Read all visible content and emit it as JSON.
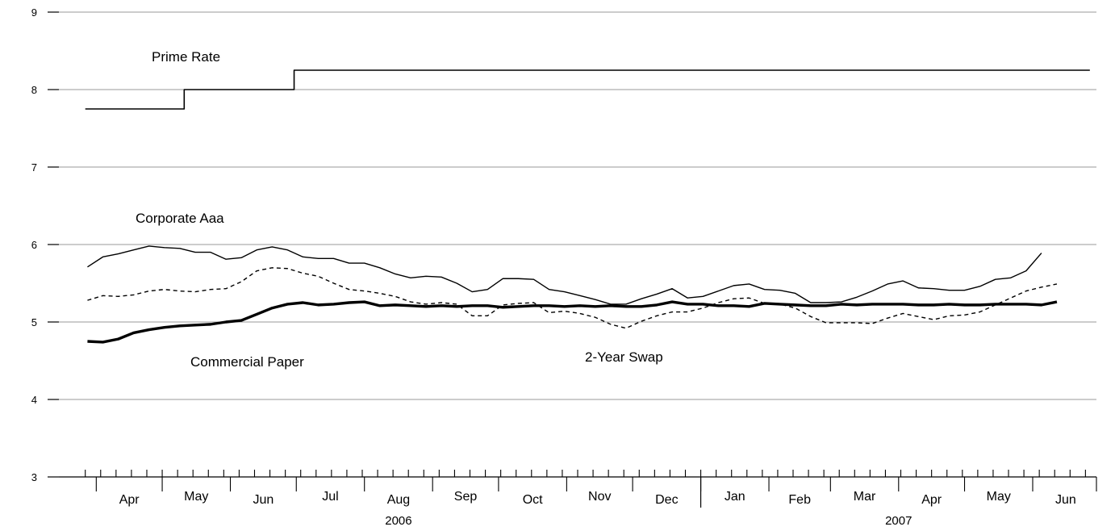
{
  "chart_data": {
    "type": "line",
    "title": "",
    "xlabel": "",
    "ylabel": "",
    "ylim": [
      3,
      9
    ],
    "yticks": [
      3,
      4,
      5,
      6,
      7,
      8,
      9
    ],
    "grid": "horizontal",
    "x_range": [
      "2006-03-15",
      "2007-06-30"
    ],
    "months": [
      {
        "label": "Apr",
        "start": "2006-04-01",
        "end": "2006-05-01"
      },
      {
        "label": "May",
        "start": "2006-05-01",
        "end": "2006-06-01"
      },
      {
        "label": "Jun",
        "start": "2006-06-01",
        "end": "2006-07-01"
      },
      {
        "label": "Jul",
        "start": "2006-07-01",
        "end": "2006-08-01"
      },
      {
        "label": "Aug",
        "start": "2006-08-01",
        "end": "2006-09-01"
      },
      {
        "label": "Sep",
        "start": "2006-09-01",
        "end": "2006-10-01"
      },
      {
        "label": "Oct",
        "start": "2006-10-01",
        "end": "2006-11-01"
      },
      {
        "label": "Nov",
        "start": "2006-11-01",
        "end": "2006-12-01"
      },
      {
        "label": "Dec",
        "start": "2006-12-01",
        "end": "2007-01-01"
      },
      {
        "label": "Jan",
        "start": "2007-01-01",
        "end": "2007-02-01"
      },
      {
        "label": "Feb",
        "start": "2007-02-01",
        "end": "2007-03-01"
      },
      {
        "label": "Mar",
        "start": "2007-03-01",
        "end": "2007-04-01"
      },
      {
        "label": "Apr",
        "start": "2007-04-01",
        "end": "2007-05-01"
      },
      {
        "label": "May",
        "start": "2007-05-01",
        "end": "2007-06-01"
      },
      {
        "label": "Jun",
        "start": "2007-06-01",
        "end": "2007-07-01"
      }
    ],
    "years": [
      {
        "label": "2006",
        "start": "2006-04-01",
        "end": "2007-01-01"
      },
      {
        "label": "2007",
        "start": "2007-01-01",
        "end": "2007-07-01"
      }
    ],
    "series": [
      {
        "name": "Prime Rate",
        "style": "step",
        "color": "#000000",
        "points": [
          [
            "2006-03-27",
            7.75
          ],
          [
            "2006-05-11",
            8.0
          ],
          [
            "2006-06-30",
            8.25
          ],
          [
            "2007-06-27",
            8.25
          ]
        ]
      },
      {
        "name": "Corporate Aaa",
        "style": "solid",
        "color": "#000000",
        "points": [
          [
            "2006-03-28",
            5.71
          ],
          [
            "2006-04-04",
            5.84
          ],
          [
            "2006-04-11",
            5.88
          ],
          [
            "2006-04-18",
            5.93
          ],
          [
            "2006-04-25",
            5.98
          ],
          [
            "2006-05-02",
            5.96
          ],
          [
            "2006-05-09",
            5.95
          ],
          [
            "2006-05-16",
            5.9
          ],
          [
            "2006-05-23",
            5.9
          ],
          [
            "2006-05-30",
            5.81
          ],
          [
            "2006-06-06",
            5.83
          ],
          [
            "2006-06-13",
            5.93
          ],
          [
            "2006-06-20",
            5.97
          ],
          [
            "2006-06-27",
            5.93
          ],
          [
            "2006-07-04",
            5.84
          ],
          [
            "2006-07-11",
            5.82
          ],
          [
            "2006-07-18",
            5.82
          ],
          [
            "2006-07-25",
            5.76
          ],
          [
            "2006-08-01",
            5.76
          ],
          [
            "2006-08-08",
            5.7
          ],
          [
            "2006-08-15",
            5.62
          ],
          [
            "2006-08-22",
            5.57
          ],
          [
            "2006-08-29",
            5.59
          ],
          [
            "2006-09-05",
            5.58
          ],
          [
            "2006-09-12",
            5.5
          ],
          [
            "2006-09-19",
            5.39
          ],
          [
            "2006-09-26",
            5.42
          ],
          [
            "2006-10-03",
            5.56
          ],
          [
            "2006-10-10",
            5.56
          ],
          [
            "2006-10-17",
            5.55
          ],
          [
            "2006-10-24",
            5.42
          ],
          [
            "2006-10-31",
            5.39
          ],
          [
            "2006-11-07",
            5.34
          ],
          [
            "2006-11-14",
            5.29
          ],
          [
            "2006-11-21",
            5.23
          ],
          [
            "2006-11-28",
            5.23
          ],
          [
            "2006-12-05",
            5.3
          ],
          [
            "2006-12-12",
            5.36
          ],
          [
            "2006-12-19",
            5.43
          ],
          [
            "2006-12-26",
            5.31
          ],
          [
            "2007-01-02",
            5.33
          ],
          [
            "2007-01-09",
            5.4
          ],
          [
            "2007-01-16",
            5.47
          ],
          [
            "2007-01-23",
            5.49
          ],
          [
            "2007-01-30",
            5.42
          ],
          [
            "2007-02-06",
            5.41
          ],
          [
            "2007-02-13",
            5.37
          ],
          [
            "2007-02-20",
            5.25
          ],
          [
            "2007-02-27",
            5.25
          ],
          [
            "2007-03-06",
            5.26
          ],
          [
            "2007-03-13",
            5.32
          ],
          [
            "2007-03-20",
            5.4
          ],
          [
            "2007-03-27",
            5.49
          ],
          [
            "2007-04-03",
            5.53
          ],
          [
            "2007-04-10",
            5.44
          ],
          [
            "2007-04-17",
            5.43
          ],
          [
            "2007-04-24",
            5.41
          ],
          [
            "2007-05-01",
            5.41
          ],
          [
            "2007-05-08",
            5.46
          ],
          [
            "2007-05-15",
            5.55
          ],
          [
            "2007-05-22",
            5.57
          ],
          [
            "2007-05-29",
            5.66
          ],
          [
            "2007-06-05",
            5.89
          ]
        ]
      },
      {
        "name": "2-Year Swap",
        "style": "dashed",
        "color": "#000000",
        "points": [
          [
            "2006-03-28",
            5.28
          ],
          [
            "2006-04-04",
            5.34
          ],
          [
            "2006-04-11",
            5.33
          ],
          [
            "2006-04-18",
            5.35
          ],
          [
            "2006-04-25",
            5.4
          ],
          [
            "2006-05-02",
            5.42
          ],
          [
            "2006-05-09",
            5.4
          ],
          [
            "2006-05-16",
            5.39
          ],
          [
            "2006-05-23",
            5.42
          ],
          [
            "2006-05-30",
            5.43
          ],
          [
            "2006-06-06",
            5.52
          ],
          [
            "2006-06-13",
            5.66
          ],
          [
            "2006-06-20",
            5.7
          ],
          [
            "2006-06-27",
            5.69
          ],
          [
            "2006-07-04",
            5.63
          ],
          [
            "2006-07-11",
            5.59
          ],
          [
            "2006-07-18",
            5.5
          ],
          [
            "2006-07-25",
            5.42
          ],
          [
            "2006-08-01",
            5.4
          ],
          [
            "2006-08-08",
            5.37
          ],
          [
            "2006-08-15",
            5.33
          ],
          [
            "2006-08-22",
            5.26
          ],
          [
            "2006-08-29",
            5.23
          ],
          [
            "2006-09-05",
            5.25
          ],
          [
            "2006-09-12",
            5.23
          ],
          [
            "2006-09-19",
            5.08
          ],
          [
            "2006-09-26",
            5.08
          ],
          [
            "2006-10-03",
            5.22
          ],
          [
            "2006-10-10",
            5.24
          ],
          [
            "2006-10-17",
            5.25
          ],
          [
            "2006-10-24",
            5.12
          ],
          [
            "2006-10-31",
            5.14
          ],
          [
            "2006-11-07",
            5.11
          ],
          [
            "2006-11-14",
            5.06
          ],
          [
            "2006-11-21",
            4.97
          ],
          [
            "2006-11-28",
            4.92
          ],
          [
            "2006-12-05",
            5.01
          ],
          [
            "2006-12-12",
            5.08
          ],
          [
            "2006-12-19",
            5.13
          ],
          [
            "2006-12-26",
            5.13
          ],
          [
            "2007-01-02",
            5.18
          ],
          [
            "2007-01-09",
            5.25
          ],
          [
            "2007-01-16",
            5.3
          ],
          [
            "2007-01-23",
            5.31
          ],
          [
            "2007-01-30",
            5.24
          ],
          [
            "2007-02-06",
            5.23
          ],
          [
            "2007-02-13",
            5.18
          ],
          [
            "2007-02-20",
            5.07
          ],
          [
            "2007-02-27",
            4.99
          ],
          [
            "2007-03-06",
            4.99
          ],
          [
            "2007-03-13",
            4.99
          ],
          [
            "2007-03-20",
            4.98
          ],
          [
            "2007-03-27",
            5.05
          ],
          [
            "2007-04-03",
            5.11
          ],
          [
            "2007-04-10",
            5.07
          ],
          [
            "2007-04-17",
            5.03
          ],
          [
            "2007-04-24",
            5.08
          ],
          [
            "2007-05-01",
            5.09
          ],
          [
            "2007-05-08",
            5.13
          ],
          [
            "2007-05-15",
            5.22
          ],
          [
            "2007-05-22",
            5.31
          ],
          [
            "2007-05-29",
            5.4
          ],
          [
            "2007-06-05",
            5.45
          ],
          [
            "2007-06-12",
            5.49
          ]
        ]
      },
      {
        "name": "Commercial Paper",
        "style": "thick",
        "color": "#000000",
        "points": [
          [
            "2006-03-28",
            4.75
          ],
          [
            "2006-04-04",
            4.74
          ],
          [
            "2006-04-11",
            4.78
          ],
          [
            "2006-04-18",
            4.86
          ],
          [
            "2006-04-25",
            4.9
          ],
          [
            "2006-05-02",
            4.93
          ],
          [
            "2006-05-09",
            4.95
          ],
          [
            "2006-05-16",
            4.96
          ],
          [
            "2006-05-23",
            4.97
          ],
          [
            "2006-05-30",
            5.0
          ],
          [
            "2006-06-06",
            5.02
          ],
          [
            "2006-06-13",
            5.1
          ],
          [
            "2006-06-20",
            5.18
          ],
          [
            "2006-06-27",
            5.23
          ],
          [
            "2006-07-04",
            5.25
          ],
          [
            "2006-07-11",
            5.22
          ],
          [
            "2006-07-18",
            5.23
          ],
          [
            "2006-07-25",
            5.25
          ],
          [
            "2006-08-01",
            5.26
          ],
          [
            "2006-08-08",
            5.21
          ],
          [
            "2006-08-15",
            5.22
          ],
          [
            "2006-08-22",
            5.21
          ],
          [
            "2006-08-29",
            5.2
          ],
          [
            "2006-09-05",
            5.21
          ],
          [
            "2006-09-12",
            5.2
          ],
          [
            "2006-09-19",
            5.21
          ],
          [
            "2006-09-26",
            5.21
          ],
          [
            "2006-10-03",
            5.19
          ],
          [
            "2006-10-10",
            5.2
          ],
          [
            "2006-10-17",
            5.21
          ],
          [
            "2006-10-24",
            5.21
          ],
          [
            "2006-10-31",
            5.2
          ],
          [
            "2006-11-07",
            5.21
          ],
          [
            "2006-11-14",
            5.2
          ],
          [
            "2006-11-21",
            5.21
          ],
          [
            "2006-11-28",
            5.2
          ],
          [
            "2006-12-05",
            5.2
          ],
          [
            "2006-12-12",
            5.22
          ],
          [
            "2006-12-19",
            5.26
          ],
          [
            "2006-12-26",
            5.23
          ],
          [
            "2007-01-02",
            5.23
          ],
          [
            "2007-01-09",
            5.21
          ],
          [
            "2007-01-16",
            5.21
          ],
          [
            "2007-01-23",
            5.2
          ],
          [
            "2007-01-30",
            5.24
          ],
          [
            "2007-02-06",
            5.23
          ],
          [
            "2007-02-13",
            5.22
          ],
          [
            "2007-02-20",
            5.21
          ],
          [
            "2007-02-27",
            5.21
          ],
          [
            "2007-03-06",
            5.23
          ],
          [
            "2007-03-13",
            5.22
          ],
          [
            "2007-03-20",
            5.23
          ],
          [
            "2007-03-27",
            5.23
          ],
          [
            "2007-04-03",
            5.23
          ],
          [
            "2007-04-10",
            5.22
          ],
          [
            "2007-04-17",
            5.22
          ],
          [
            "2007-04-24",
            5.23
          ],
          [
            "2007-05-01",
            5.22
          ],
          [
            "2007-05-08",
            5.22
          ],
          [
            "2007-05-15",
            5.23
          ],
          [
            "2007-05-22",
            5.23
          ],
          [
            "2007-05-29",
            5.23
          ],
          [
            "2007-06-05",
            5.22
          ],
          [
            "2007-06-12",
            5.26
          ]
        ]
      }
    ],
    "annotations": [
      {
        "text": "Prime Rate",
        "series": "Prime Rate"
      },
      {
        "text": "Corporate Aaa",
        "series": "Corporate Aaa"
      },
      {
        "text": "Commercial Paper",
        "series": "Commercial Paper"
      },
      {
        "text": "2-Year Swap",
        "series": "2-Year Swap"
      }
    ]
  }
}
